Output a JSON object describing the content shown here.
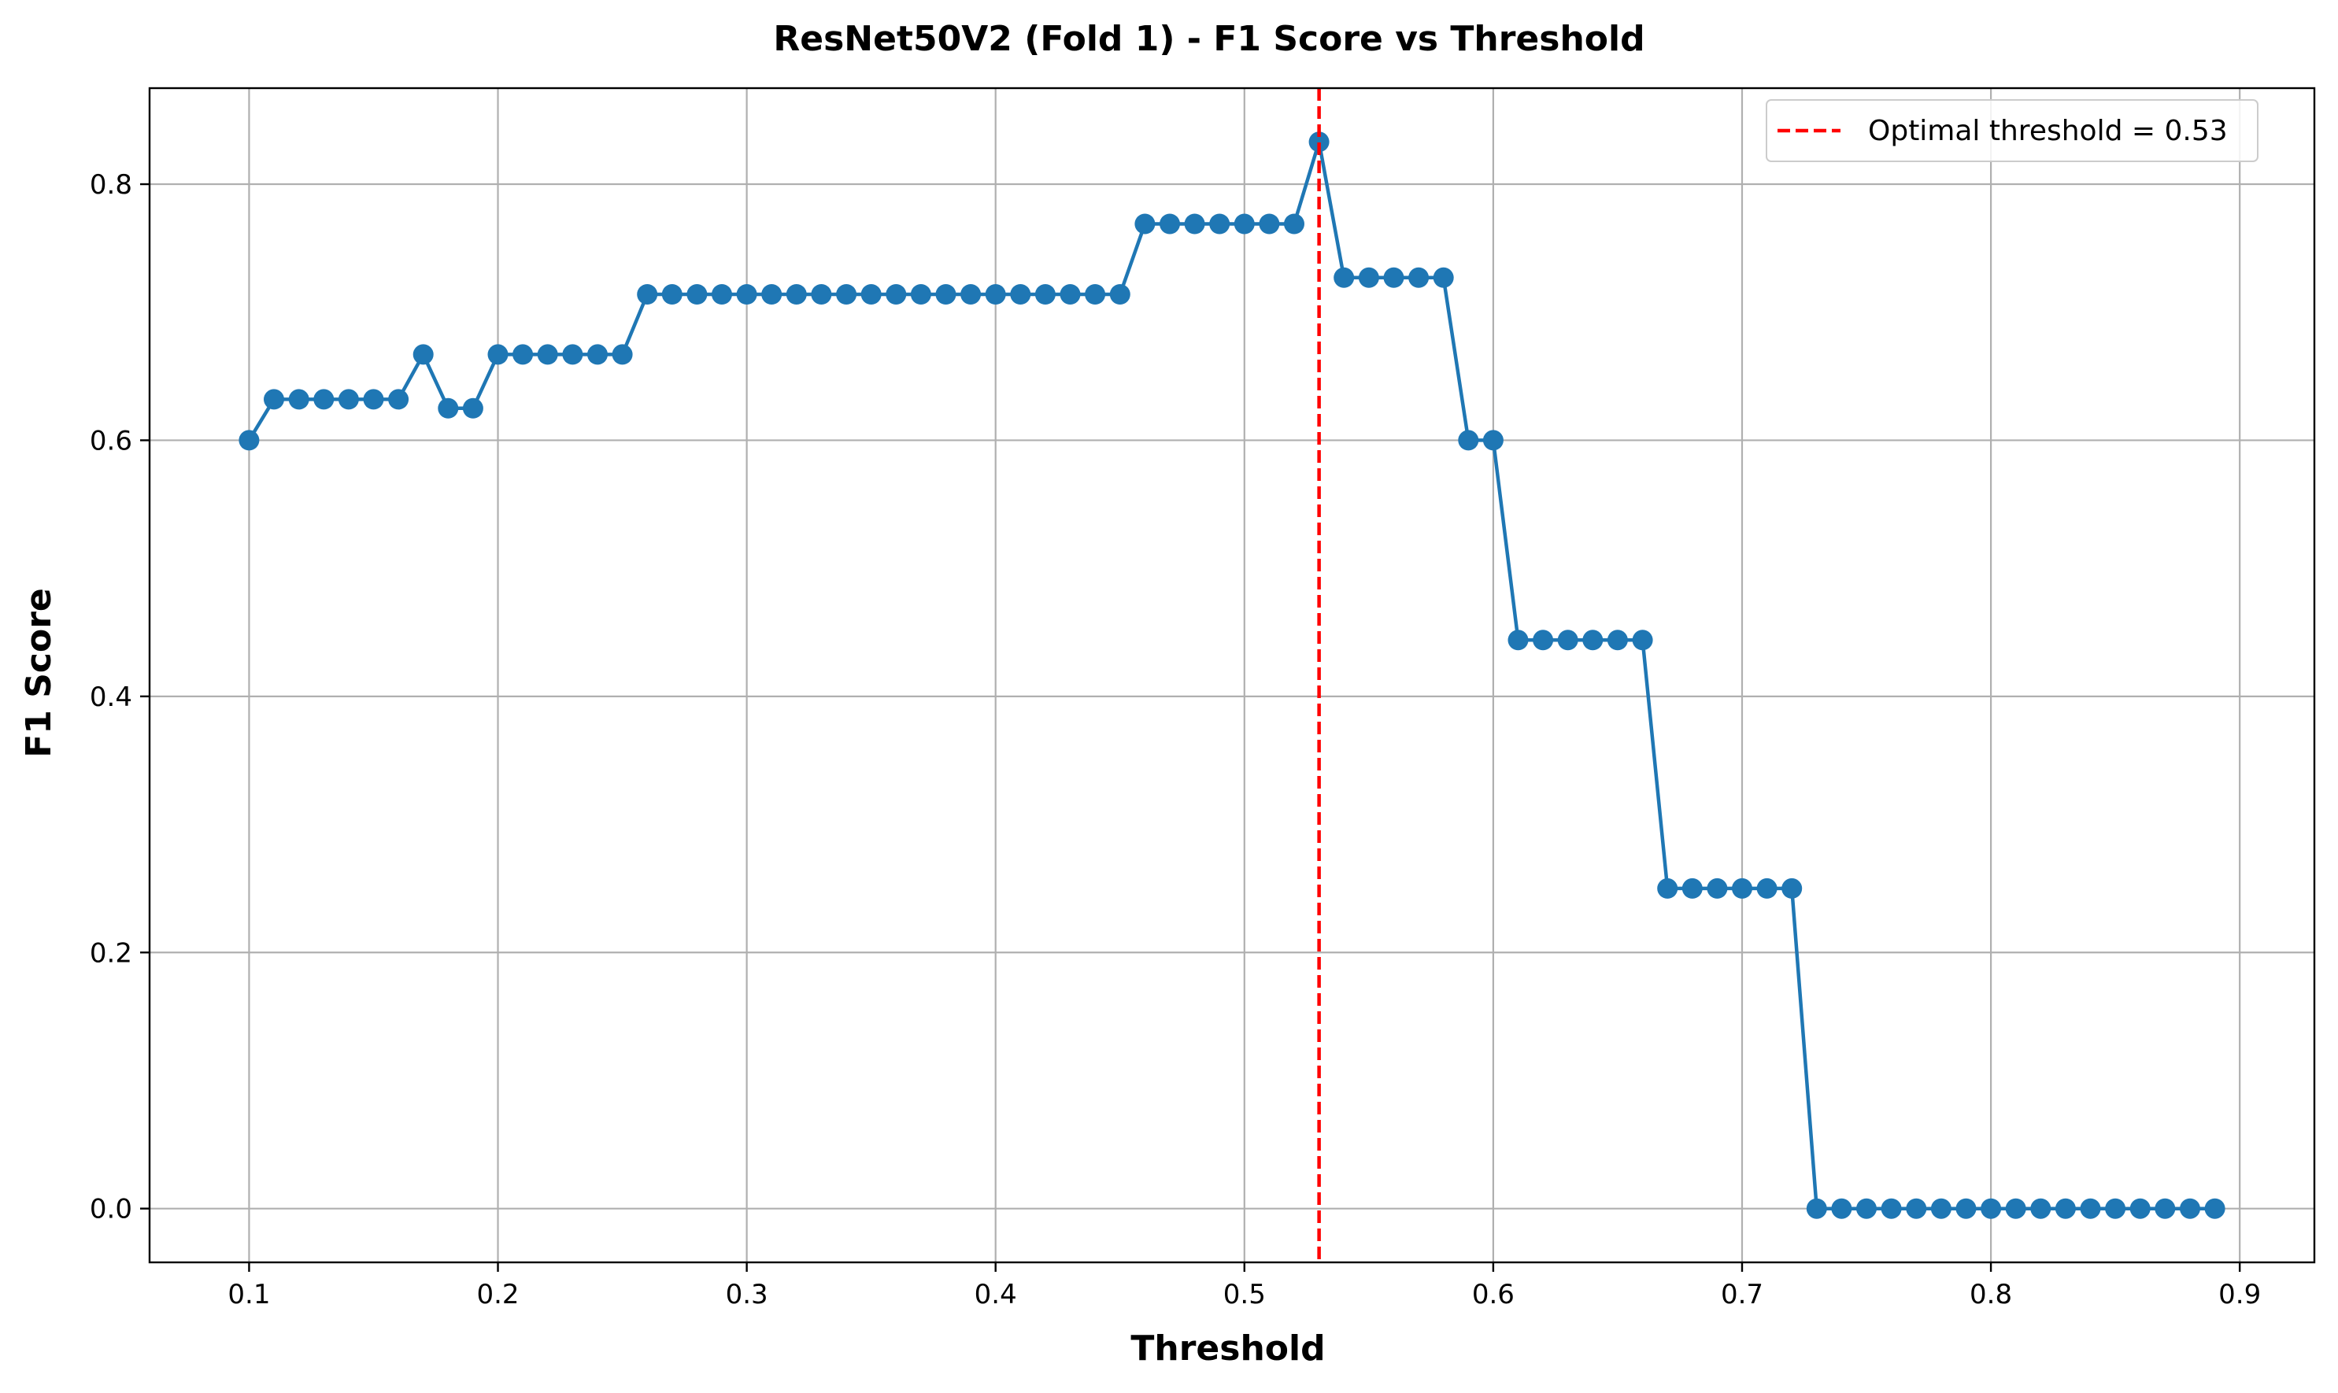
{
  "chart_data": {
    "type": "line",
    "title": "ResNet50V2 (Fold 1) - F1 Score vs Threshold",
    "xlabel": "Threshold",
    "ylabel": "F1 Score",
    "xlim": [
      0.06,
      0.93
    ],
    "ylim": [
      -0.042,
      0.875
    ],
    "xticks": [
      0.1,
      0.2,
      0.3,
      0.4,
      0.5,
      0.6,
      0.7,
      0.8,
      0.9
    ],
    "xtick_labels": [
      "0.1",
      "0.2",
      "0.3",
      "0.4",
      "0.5",
      "0.6",
      "0.7",
      "0.8",
      "0.9"
    ],
    "yticks": [
      0.0,
      0.2,
      0.4,
      0.6,
      0.8
    ],
    "ytick_labels": [
      "0.0",
      "0.2",
      "0.4",
      "0.6",
      "0.8"
    ],
    "grid": true,
    "legend_position": "top-right",
    "colors": {
      "series": "#1f77b4",
      "optimal": "#ff0000"
    },
    "series": [
      {
        "x": [
          0.1,
          0.11,
          0.12,
          0.13,
          0.14,
          0.15,
          0.16,
          0.17,
          0.18,
          0.19,
          0.2,
          0.21,
          0.22,
          0.23,
          0.24,
          0.25,
          0.26,
          0.27,
          0.28,
          0.29,
          0.3,
          0.31,
          0.32,
          0.33,
          0.34,
          0.35,
          0.36,
          0.37,
          0.38,
          0.39,
          0.4,
          0.41,
          0.42,
          0.43,
          0.44,
          0.45,
          0.46,
          0.47,
          0.48,
          0.49,
          0.5,
          0.51,
          0.52,
          0.53,
          0.54,
          0.55,
          0.56,
          0.57,
          0.58,
          0.59,
          0.6,
          0.61,
          0.62,
          0.63,
          0.64,
          0.65,
          0.66,
          0.67,
          0.68,
          0.69,
          0.7,
          0.71,
          0.72,
          0.73,
          0.74,
          0.75,
          0.76,
          0.77,
          0.78,
          0.79,
          0.8,
          0.81,
          0.82,
          0.83,
          0.84,
          0.85,
          0.86,
          0.87,
          0.88,
          0.89
        ],
        "values": [
          0.6,
          0.632,
          0.632,
          0.632,
          0.632,
          0.632,
          0.632,
          0.667,
          0.625,
          0.625,
          0.667,
          0.667,
          0.667,
          0.667,
          0.667,
          0.667,
          0.714,
          0.714,
          0.714,
          0.714,
          0.714,
          0.714,
          0.714,
          0.714,
          0.714,
          0.714,
          0.714,
          0.714,
          0.714,
          0.714,
          0.714,
          0.714,
          0.714,
          0.714,
          0.714,
          0.714,
          0.769,
          0.769,
          0.769,
          0.769,
          0.769,
          0.769,
          0.769,
          0.833,
          0.727,
          0.727,
          0.727,
          0.727,
          0.727,
          0.6,
          0.6,
          0.444,
          0.444,
          0.444,
          0.444,
          0.444,
          0.444,
          0.25,
          0.25,
          0.25,
          0.25,
          0.25,
          0.25,
          0,
          0,
          0,
          0,
          0,
          0,
          0,
          0,
          0,
          0,
          0,
          0,
          0,
          0,
          0,
          0,
          0
        ]
      }
    ],
    "optimal_threshold": {
      "x": 0.53,
      "legend_label": "Optimal threshold = 0.53"
    }
  }
}
